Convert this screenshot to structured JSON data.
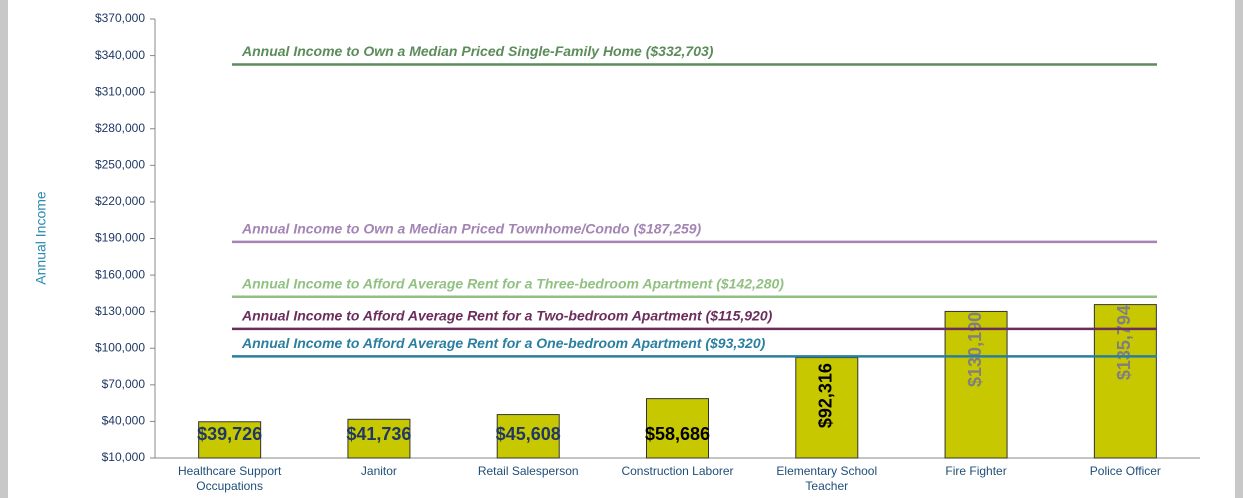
{
  "chart_data": {
    "type": "bar",
    "ylabel": "Annual Income",
    "categories": [
      "Healthcare Support Occupations",
      "Janitor",
      "Retail Salesperson",
      "Construction Laborer",
      "Elementary School Teacher",
      "Fire Fighter",
      "Police Officer"
    ],
    "values": [
      39726,
      41736,
      45608,
      58686,
      92316,
      130190,
      135794
    ],
    "value_labels": [
      "$39,726",
      "$41,736",
      "$45,608",
      "$58,686",
      "$92,316",
      "$130,190",
      "$135,794"
    ],
    "value_label_colors": [
      "#1f3864",
      "#1f3864",
      "#1f3864",
      "#000000",
      "#000000",
      "#7f7f7f",
      "#7f7f7f"
    ],
    "color": "#c8c800",
    "ylim": [
      10000,
      370000
    ],
    "yticks": [
      {
        "value": 10000,
        "label": "$10,000"
      },
      {
        "value": 40000,
        "label": "$40,000"
      },
      {
        "value": 70000,
        "label": "$70,000"
      },
      {
        "value": 100000,
        "label": "$100,000"
      },
      {
        "value": 130000,
        "label": "$130,000"
      },
      {
        "value": 160000,
        "label": "$160,000"
      },
      {
        "value": 190000,
        "label": "$190,000"
      },
      {
        "value": 220000,
        "label": "$220,000"
      },
      {
        "value": 250000,
        "label": "$250,000"
      },
      {
        "value": 280000,
        "label": "$280,000"
      },
      {
        "value": 310000,
        "label": "$310,000"
      },
      {
        "value": 340000,
        "label": "$340,000"
      },
      {
        "value": 370000,
        "label": "$370,000"
      }
    ],
    "reference_lines": [
      {
        "label": "Annual Income to Own a Median Priced Single-Family Home ($332,703)",
        "value": 332703,
        "color": "#5b8c5a"
      },
      {
        "label": "Annual Income to Own a Median Priced Townhome/Condo ($187,259)",
        "value": 187259,
        "color": "#a384b4"
      },
      {
        "label": "Annual Income to Afford Average Rent for a Three-bedroom Apartment ($142,280)",
        "value": 142280,
        "color": "#92c083"
      },
      {
        "label": "Annual Income to Afford Average Rent for a Two-bedroom Apartment ($115,920)",
        "value": 115920,
        "color": "#6b2d5c"
      },
      {
        "label": "Annual Income to Afford Average Rent for a One-bedroom Apartment ($93,320)",
        "value": 93320,
        "color": "#2a7fa0"
      }
    ]
  }
}
